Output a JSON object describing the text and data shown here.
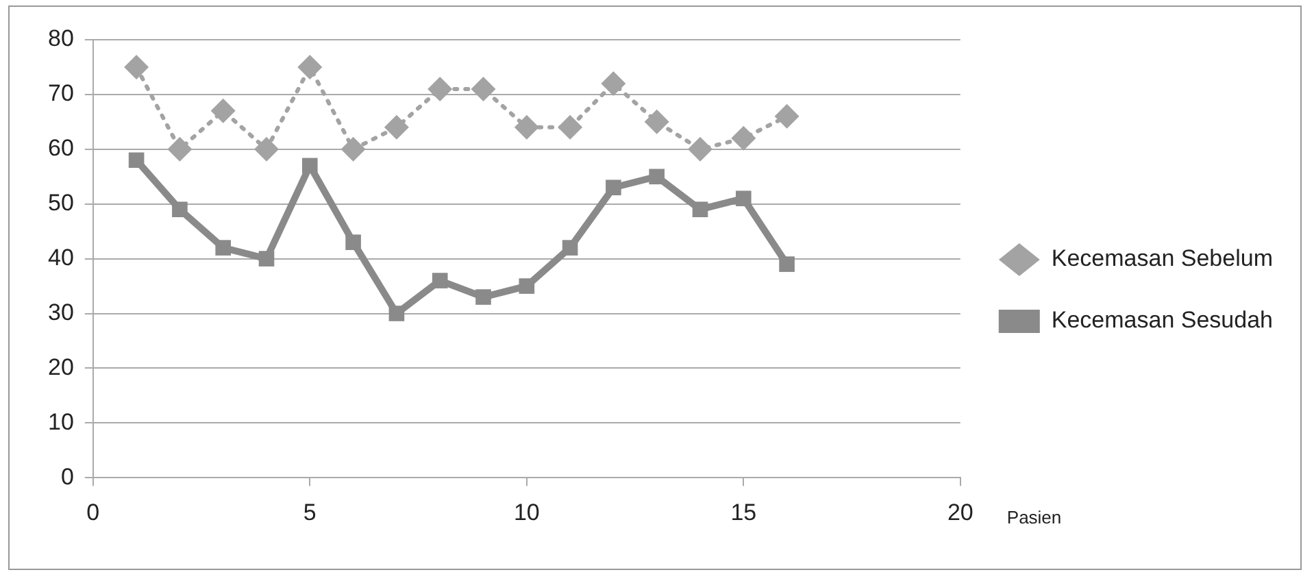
{
  "chart_data": {
    "type": "line",
    "xlabel": "Pasien",
    "x": [
      1,
      2,
      3,
      4,
      5,
      6,
      7,
      8,
      9,
      10,
      11,
      12,
      13,
      14,
      15,
      16
    ],
    "series": [
      {
        "name": "Kecemasan Sebelum",
        "color": "#a3a3a3",
        "values": [
          75,
          60,
          67,
          60,
          75,
          60,
          64,
          71,
          71,
          64,
          64,
          72,
          65,
          60,
          62,
          66
        ],
        "marker": "diamond",
        "line_style": "dotted"
      },
      {
        "name": "Kecemasan Sesudah",
        "color": "#8a8a8a",
        "values": [
          58,
          49,
          42,
          40,
          57,
          43,
          30,
          36,
          33,
          35,
          42,
          53,
          55,
          49,
          51,
          39
        ],
        "marker": "square",
        "line_style": "solid"
      }
    ],
    "xlim": [
      0,
      20
    ],
    "xticks": [
      0,
      5,
      10,
      15,
      20
    ],
    "ylim": [
      0,
      80
    ],
    "yticks": [
      0,
      10,
      20,
      30,
      40,
      50,
      60,
      70,
      80
    ],
    "grid": "y",
    "legend": "right"
  }
}
